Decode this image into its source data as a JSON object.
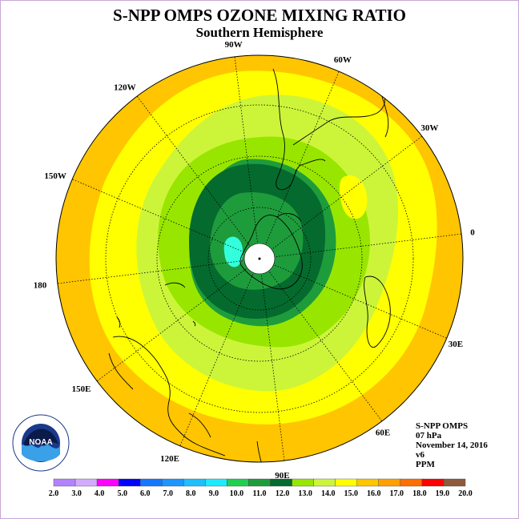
{
  "header": {
    "title": "S-NPP OMPS OZONE MIXING RATIO",
    "subtitle": "Southern Hemisphere"
  },
  "map": {
    "projection": "south polar stereographic",
    "longitude_labels": [
      "90W",
      "60W",
      "30W",
      "0",
      "30E",
      "60E",
      "90E",
      "120E",
      "150E",
      "180",
      "150W",
      "120W"
    ],
    "colors": {
      "outer_orange": "#ffc500",
      "yellow": "#ffff00",
      "yellow_green": "#ccf53a",
      "light_green": "#98e600",
      "medium_green": "#1e9c3c",
      "dark_green": "#056a2e",
      "cyan": "#33ffdd",
      "pole_fill": "#ffffff"
    }
  },
  "info": {
    "instrument": "S-NPP OMPS",
    "level": "07 hPa",
    "date": "November 14, 2016",
    "version": "v6",
    "units": "PPM"
  },
  "legend": {
    "ticks": [
      "2.0",
      "3.0",
      "4.0",
      "5.0",
      "6.0",
      "7.0",
      "8.0",
      "9.0",
      "10.0",
      "11.0",
      "12.0",
      "13.0",
      "14.0",
      "15.0",
      "16.0",
      "17.0",
      "18.0",
      "19.0",
      "20.0"
    ],
    "colors": [
      "#b482ff",
      "#d2aaff",
      "#ff00ff",
      "#0000ff",
      "#1478ff",
      "#1e96ff",
      "#1ebeff",
      "#1eeaff",
      "#1ecf50",
      "#1e9c3c",
      "#056a2e",
      "#98e600",
      "#ccf53a",
      "#ffff00",
      "#ffc500",
      "#ffa000",
      "#ff6e00",
      "#ff0000",
      "#8c5a3c"
    ]
  },
  "logo": {
    "name": "noaa-logo",
    "text": "NOAA"
  }
}
